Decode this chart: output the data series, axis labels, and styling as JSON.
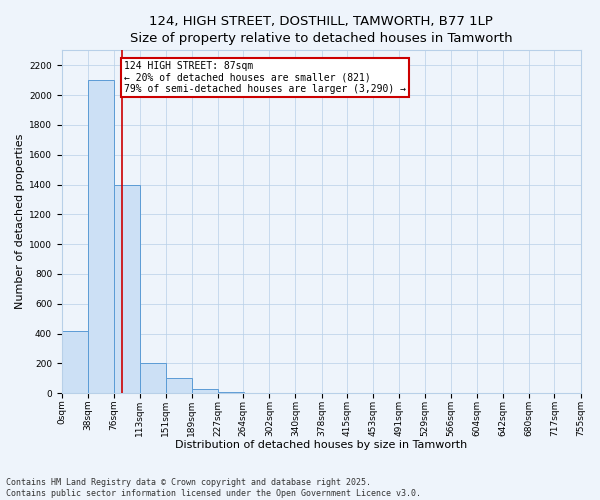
{
  "title_line1": "124, HIGH STREET, DOSTHILL, TAMWORTH, B77 1LP",
  "title_line2": "Size of property relative to detached houses in Tamworth",
  "xlabel": "Distribution of detached houses by size in Tamworth",
  "ylabel": "Number of detached properties",
  "bar_left_edges": [
    0,
    38,
    76,
    113,
    151,
    189,
    227,
    264,
    302,
    340,
    378,
    415,
    453,
    491,
    529,
    566,
    604,
    642,
    680,
    717
  ],
  "bar_heights": [
    420,
    2100,
    1400,
    200,
    100,
    30,
    5,
    0,
    0,
    0,
    0,
    0,
    0,
    0,
    0,
    0,
    0,
    0,
    0,
    0
  ],
  "bin_width": 38,
  "bar_facecolor": "#cce0f5",
  "bar_edgecolor": "#5b9bd5",
  "background_color": "#eef4fb",
  "grid_color": "#b8d0e8",
  "property_line_x": 87,
  "property_line_color": "#cc0000",
  "annotation_text": "124 HIGH STREET: 87sqm\n← 20% of detached houses are smaller (821)\n79% of semi-detached houses are larger (3,290) →",
  "annotation_box_color": "#cc0000",
  "ylim": [
    0,
    2300
  ],
  "xlim": [
    0,
    755
  ],
  "yticks": [
    0,
    200,
    400,
    600,
    800,
    1000,
    1200,
    1400,
    1600,
    1800,
    2000,
    2200
  ],
  "xtick_labels": [
    "0sqm",
    "38sqm",
    "76sqm",
    "113sqm",
    "151sqm",
    "189sqm",
    "227sqm",
    "264sqm",
    "302sqm",
    "340sqm",
    "378sqm",
    "415sqm",
    "453sqm",
    "491sqm",
    "529sqm",
    "566sqm",
    "604sqm",
    "642sqm",
    "680sqm",
    "717sqm",
    "755sqm"
  ],
  "xtick_positions": [
    0,
    38,
    76,
    113,
    151,
    189,
    227,
    264,
    302,
    340,
    378,
    415,
    453,
    491,
    529,
    566,
    604,
    642,
    680,
    717,
    755
  ],
  "footer_text": "Contains HM Land Registry data © Crown copyright and database right 2025.\nContains public sector information licensed under the Open Government Licence v3.0.",
  "title_fontsize": 9.5,
  "axis_label_fontsize": 8,
  "tick_fontsize": 6.5,
  "footer_fontsize": 6,
  "annot_fontsize": 7
}
